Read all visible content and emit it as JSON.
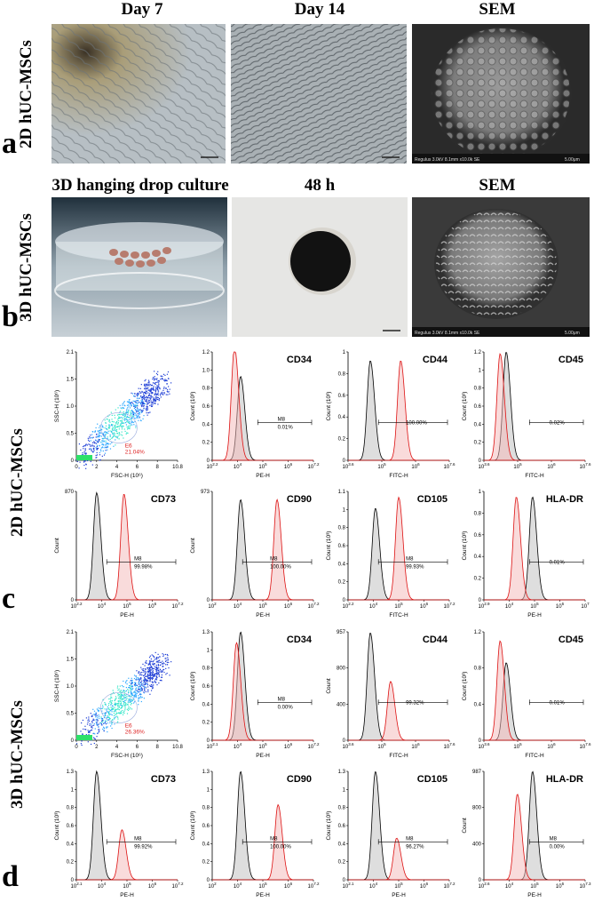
{
  "headers": {
    "day7": "Day 7",
    "day14": "Day 14",
    "sem_a": "SEM",
    "hanging": "3D hanging drop culture",
    "h48": "48 h",
    "sem_b": "SEM"
  },
  "panel_letters": [
    "a",
    "b",
    "c",
    "d"
  ],
  "row_labels": {
    "a": "2D hUC-MSCs",
    "b": "3D hUC-MSCs",
    "c": "2D hUC-MSCs",
    "d": "3D hUC-MSCs"
  },
  "sem_captions": {
    "a": "Regulus 3.0kV 8.1mm x10.0k SE",
    "a_scale": "5.00μm",
    "b": "Regulus 3.0kV 8.1mm x10.0k SE",
    "b_scale": "5.00μm"
  },
  "chart_data": [
    {
      "type": "scatter",
      "panel": "c",
      "gate": "E6",
      "gate_pct": "21.04%",
      "xlabel": "FSC-H (10⁶)",
      "ylabel": "SSC-H (10⁶)",
      "xticks": [
        "0",
        "2",
        "4",
        "6",
        "8",
        "10.8"
      ],
      "yticks": [
        "0",
        "0.5",
        "1.0",
        "1.5",
        "2.1"
      ]
    },
    {
      "type": "histogram",
      "panel": "c",
      "marker": "CD34",
      "gate": "M8",
      "pct": "0.01%",
      "xlabel": "PE-H",
      "ylabel": "Count (10³)",
      "xticks": [
        "10^2.2",
        "10^4",
        "10^5",
        "10^6",
        "10^7.2"
      ],
      "yticks": [
        "0",
        "0.2",
        "0.4",
        "0.6",
        "0.8",
        "1.0",
        "1.2"
      ],
      "red_peak": 1.25,
      "black_peak": 0.93
    },
    {
      "type": "histogram",
      "panel": "c",
      "marker": "CD44",
      "gate": "",
      "pct": "100.00%",
      "xlabel": "FITC-H",
      "ylabel": "Count (10³)",
      "xticks": [
        "10^3.6",
        "10^5",
        "10^6",
        "10^7.6"
      ],
      "yticks": [
        "0",
        "0.2",
        "0.4",
        "0.6",
        "0.8",
        "1"
      ],
      "red_peak": 0.92,
      "black_peak": 0.92
    },
    {
      "type": "histogram",
      "panel": "c",
      "marker": "CD45",
      "gate": "",
      "pct": "0.02%",
      "xlabel": "FITC-H",
      "ylabel": "Count (10³)",
      "xticks": [
        "10^3.6",
        "10^5",
        "10^6",
        "10^7.6"
      ],
      "yticks": [
        "0",
        "0.2",
        "0.4",
        "0.6",
        "0.8",
        "1",
        "1.2"
      ],
      "red_peak": 1.18,
      "black_peak": 1.2
    },
    {
      "type": "histogram",
      "panel": "c",
      "marker": "CD73",
      "gate": "M8",
      "pct": "99.98%",
      "xlabel": "PE-H",
      "ylabel": "Count",
      "xticks": [
        "10^2.2",
        "10^4",
        "10^5",
        "10^6",
        "10^7.2"
      ],
      "yticks": [
        "0",
        "870"
      ],
      "red_peak": 850,
      "black_peak": 860
    },
    {
      "type": "histogram",
      "panel": "c",
      "marker": "CD90",
      "gate": "M8",
      "pct": "100.00%",
      "xlabel": "PE-H",
      "ylabel": "Count",
      "xticks": [
        "10^2",
        "10^4",
        "10^5",
        "10^6",
        "10^7.2"
      ],
      "yticks": [
        "0",
        "973"
      ],
      "red_peak": 900,
      "black_peak": 900
    },
    {
      "type": "histogram",
      "panel": "c",
      "marker": "CD105",
      "gate": "M8",
      "pct": "99.93%",
      "xlabel": "FITC-H",
      "ylabel": "Count (10³)",
      "xticks": [
        "10^2.2",
        "10^4",
        "10^5",
        "10^6",
        "10^7.2"
      ],
      "yticks": [
        "0",
        "0.2",
        "0.4",
        "0.6",
        "0.8",
        "1",
        "1.1"
      ],
      "red_peak": 1.04,
      "black_peak": 0.93
    },
    {
      "type": "histogram",
      "panel": "c",
      "marker": "HLA-DR",
      "gate": "",
      "pct": "0.01%",
      "xlabel": "PE-H",
      "ylabel": "Count (10³)",
      "xticks": [
        "10^2.9",
        "10^4",
        "10^5",
        "10^6",
        "10^7"
      ],
      "yticks": [
        "0",
        "0.2",
        "0.4",
        "0.6",
        "0.8",
        "1"
      ],
      "red_peak": 0.95,
      "black_peak": 0.95
    },
    {
      "type": "scatter",
      "panel": "d",
      "gate": "E6",
      "gate_pct": "26.36%",
      "xlabel": "FSC-H (10⁶)",
      "ylabel": "SSC-H (10⁶)",
      "xticks": [
        "0",
        "2",
        "4",
        "6",
        "8",
        "10.8"
      ],
      "yticks": [
        "0",
        "0.5",
        "1.0",
        "1.5",
        "2.1"
      ]
    },
    {
      "type": "histogram",
      "panel": "d",
      "marker": "CD34",
      "gate": "M8",
      "pct": "0.00%",
      "xlabel": "PE-H",
      "ylabel": "Count (10³)",
      "xticks": [
        "10^2.1",
        "10^4",
        "10^5",
        "10^6",
        "10^7.2"
      ],
      "yticks": [
        "0",
        "0.2",
        "0.4",
        "0.6",
        "0.8",
        "1",
        "1.3"
      ],
      "red_peak": 1.17,
      "black_peak": 1.3
    },
    {
      "type": "histogram",
      "panel": "d",
      "marker": "CD44",
      "gate": "",
      "pct": "99.32%",
      "xlabel": "FITC-H",
      "ylabel": "Count",
      "xticks": [
        "10^3.6",
        "10^5",
        "10^6",
        "10^7.6"
      ],
      "yticks": [
        "0",
        "400",
        "800",
        "957"
      ],
      "red_peak": 520,
      "black_peak": 950
    },
    {
      "type": "histogram",
      "panel": "d",
      "marker": "CD45",
      "gate": "",
      "pct": "0.01%",
      "xlabel": "FITC-H",
      "ylabel": "Count (10³)",
      "xticks": [
        "10^3.6",
        "10^5",
        "10^6",
        "10^7.6"
      ],
      "yticks": [
        "0",
        "0.4",
        "0.8",
        "1.2"
      ],
      "red_peak": 1.1,
      "black_peak": 0.86
    },
    {
      "type": "histogram",
      "panel": "d",
      "marker": "CD73",
      "gate": "M8",
      "pct": "99.92%",
      "xlabel": "PE-H",
      "ylabel": "Count (10³)",
      "xticks": [
        "10^2.1",
        "10^4",
        "10^5",
        "10^6",
        "10^7.2"
      ],
      "yticks": [
        "0",
        "0.2",
        "0.4",
        "0.6",
        "0.8",
        "1",
        "1.3"
      ],
      "red_peak": 0.6,
      "black_peak": 1.3
    },
    {
      "type": "histogram",
      "panel": "d",
      "marker": "CD90",
      "gate": "M8",
      "pct": "100.00%",
      "xlabel": "PE-H",
      "ylabel": "Count (10³)",
      "xticks": [
        "10^2",
        "10^4",
        "10^5",
        "10^6",
        "10^7.2"
      ],
      "yticks": [
        "0",
        "0.2",
        "0.4",
        "0.6",
        "0.8",
        "1",
        "1.3"
      ],
      "red_peak": 0.9,
      "black_peak": 1.3
    },
    {
      "type": "histogram",
      "panel": "d",
      "marker": "CD105",
      "gate": "M8",
      "pct": "96.27%",
      "xlabel": "PE-H",
      "ylabel": "Count (10³)",
      "xticks": [
        "10^2.1",
        "10^4",
        "10^5",
        "10^6",
        "10^7.2"
      ],
      "yticks": [
        "0",
        "0.2",
        "0.4",
        "0.6",
        "0.8",
        "1",
        "1.3"
      ],
      "red_peak": 0.5,
      "black_peak": 1.3
    },
    {
      "type": "histogram",
      "panel": "d",
      "marker": "HLA-DR",
      "gate": "M8",
      "pct": "0.00%",
      "xlabel": "PE-H",
      "ylabel": "Count",
      "xticks": [
        "10^2.6",
        "10^4",
        "10^5",
        "10^6",
        "10^7.3"
      ],
      "yticks": [
        "0",
        "400",
        "800",
        "987"
      ],
      "red_peak": 780,
      "black_peak": 987
    }
  ]
}
